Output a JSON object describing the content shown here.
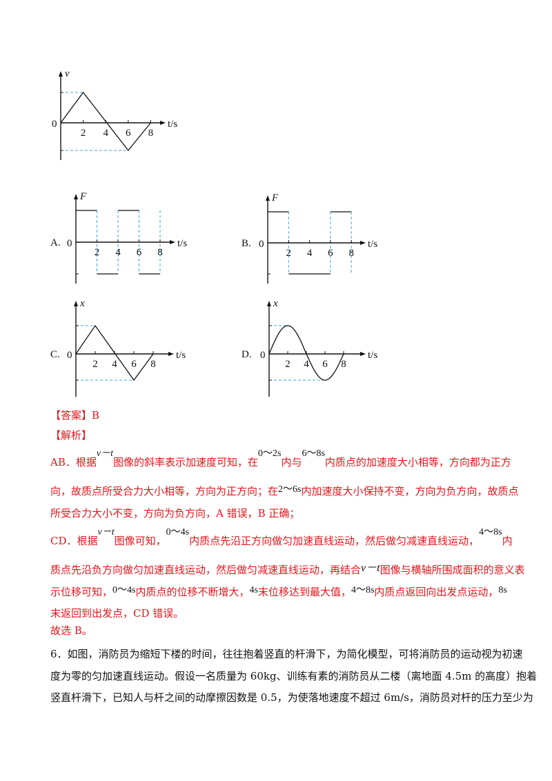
{
  "chart_data": [
    {
      "type": "line",
      "id": "vt",
      "ylabel": "v",
      "xlabel": "t/s",
      "origin_label": "0",
      "x_ticks": [
        "2",
        "4",
        "6",
        "8"
      ],
      "points": [
        [
          0,
          0
        ],
        [
          2,
          1
        ],
        [
          6,
          -1
        ],
        [
          8,
          0
        ]
      ],
      "guides": [
        1,
        -1
      ],
      "ylim": [
        -1.3,
        1.6
      ],
      "xlim": [
        0,
        8
      ]
    },
    {
      "type": "line",
      "id": "A",
      "option": "A.",
      "ylabel": "F",
      "xlabel": "t/s",
      "origin_label": "0",
      "x_ticks": [
        "2",
        "4",
        "6",
        "8"
      ],
      "points": [
        [
          0,
          1
        ],
        [
          2,
          1
        ],
        [
          2,
          -1
        ],
        [
          4,
          -1
        ],
        [
          4,
          1
        ],
        [
          6,
          1
        ],
        [
          6,
          -1
        ],
        [
          8,
          -1
        ]
      ],
      "dashed_verticals": [
        2,
        4,
        6,
        8
      ],
      "solid_segments": [
        [
          [
            0,
            1
          ],
          [
            2,
            1
          ]
        ],
        [
          [
            2,
            -1
          ],
          [
            4,
            -1
          ]
        ],
        [
          [
            4,
            1
          ],
          [
            6,
            1
          ]
        ],
        [
          [
            6,
            -1
          ],
          [
            8,
            -1
          ]
        ]
      ],
      "ylim": [
        -1.3,
        1.5
      ],
      "xlim": [
        0,
        8
      ]
    },
    {
      "type": "line",
      "id": "B",
      "option": "B.",
      "ylabel": "F",
      "xlabel": "t/s",
      "origin_label": "0",
      "x_ticks": [
        "2",
        "4",
        "6",
        "8"
      ],
      "points": [
        [
          0,
          1
        ],
        [
          2,
          1
        ],
        [
          2,
          -1
        ],
        [
          6,
          -1
        ],
        [
          6,
          1
        ],
        [
          8,
          1
        ]
      ],
      "dashed_verticals": [
        2,
        6,
        8
      ],
      "solid_segments": [
        [
          [
            0,
            1
          ],
          [
            2,
            1
          ]
        ],
        [
          [
            2,
            -1
          ],
          [
            6,
            -1
          ]
        ],
        [
          [
            6,
            1
          ],
          [
            8,
            1
          ]
        ]
      ],
      "ylim": [
        -1.3,
        1.5
      ],
      "xlim": [
        0,
        8
      ]
    },
    {
      "type": "line",
      "id": "C",
      "option": "C.",
      "ylabel": "x",
      "xlabel": "t/s",
      "origin_label": "0",
      "x_ticks": [
        "2",
        "4",
        "6",
        "8"
      ],
      "points": [
        [
          0,
          0
        ],
        [
          2,
          1
        ],
        [
          6,
          -1
        ],
        [
          8,
          0
        ]
      ],
      "guides": [
        1,
        -1
      ],
      "ylim": [
        -1.3,
        1.5
      ],
      "xlim": [
        0,
        8
      ]
    },
    {
      "type": "line",
      "id": "D",
      "option": "D.",
      "ylabel": "x",
      "xlabel": "t/s",
      "origin_label": "0",
      "x_ticks": [
        "2",
        "4",
        "6",
        "8"
      ],
      "curve": "sine",
      "points": [
        [
          0,
          0
        ],
        [
          2,
          1
        ],
        [
          4,
          0
        ],
        [
          6,
          -1
        ],
        [
          8,
          0
        ]
      ],
      "guides": [
        1,
        -1
      ],
      "ylim": [
        -1.3,
        1.5
      ],
      "xlim": [
        0,
        8
      ]
    }
  ],
  "answer": {
    "label": "【答案】B"
  },
  "analysis": {
    "label": "【解析】",
    "ab": {
      "t1": "AB．根据",
      "m1": "v－t",
      "t2": "图像的斜率表示加速度可知，在",
      "m2": "0～2s",
      "t3": "内与",
      "m3": "6～8s",
      "t4": "内质点的加速度大小相等，方向都为正方"
    },
    "ab2": {
      "t1": "向，故质点所受合力大小相等，方向为正方向；在",
      "m1": "2～6s",
      "t2": "内加速度大小保持不变，方向为负方向，故质点"
    },
    "ab3": "所受合力大小不变，方向为负方向，A 错误，B 正确；",
    "cd": {
      "t1": "CD．根据",
      "m1": "v－t",
      "t2": "图像可知，",
      "m2": "0～4s",
      "t3": "内质点先沿正方向做匀加速直线运动，然后做匀减速直线运动，",
      "m3": "4～8s",
      "t4": "内"
    },
    "cd2": {
      "t1": "质点先沿负方向做匀加速直线运动，然后做匀减速直线运动，再结合",
      "m1": "v－t",
      "t2": "图像与横轴所围成面积的意义表"
    },
    "cd3": {
      "t1": "示位移可知，",
      "m1": "0～4s",
      "t2": "内质点的位移不断增大，",
      "m2": "4s",
      "t3": "末位移达到最大值，",
      "m3": "4～8s",
      "t4": "内质点返回向出发点运动，",
      "m4": "8s"
    },
    "cd4": "末返回到出发点，CD 错误。",
    "conclusion": "故选 B。"
  },
  "question6": {
    "l1": "6．如图，消防员为缩短下楼的时间，往往抱着竖直的杆滑下，为简化模型，可将消防员的运动视为初速",
    "l2": "度为零的匀加速直线运动。假设一名质量为 60kg、训练有素的消防员从二楼（离地面 4.5m 的高度）抱着",
    "l3": "竖直杆滑下，已知人与杆之间的动摩擦因数是 0.5，为使落地速度不超过 6m/s，消防员对杆的压力至少为"
  },
  "colors": {
    "text_red": "#e8141b",
    "guide_blue": "#3aa7d8",
    "axis": "#111111"
  }
}
